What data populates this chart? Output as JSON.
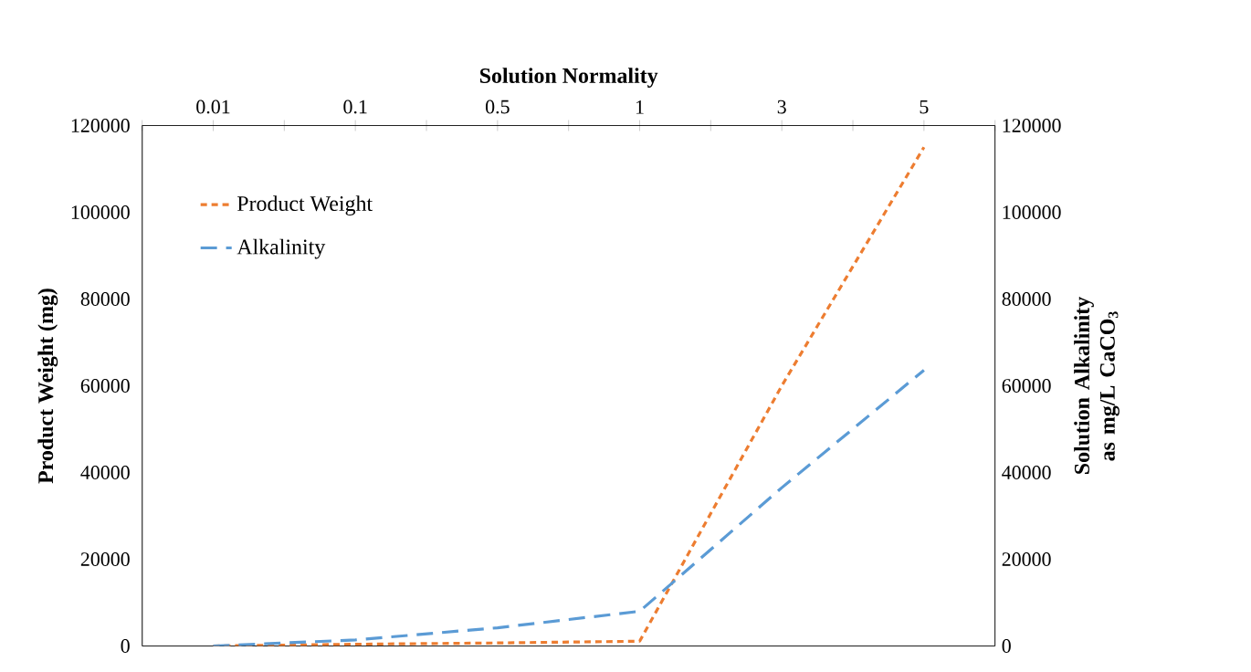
{
  "chart_data": {
    "type": "line",
    "xlabel": "Solution Normality",
    "ylabel": "Product Weight (mg)",
    "y2label": "Solution Alkalinity as mg/L CaCO$_{3}$",
    "categories": [
      "0.01",
      "0.1",
      "0.5",
      "1",
      "3",
      "5"
    ],
    "ylim": [
      0,
      120000
    ],
    "yticks": [
      0,
      20000,
      40000,
      60000,
      80000,
      100000,
      120000
    ],
    "y2lim": [
      0,
      120000
    ],
    "y2ticks": [
      0,
      20000,
      40000,
      60000,
      80000,
      100000,
      120000
    ],
    "legend": "top left",
    "grid": false,
    "marker": "none",
    "series": [
      {
        "name": "Product Weight",
        "color": "#ed7d31",
        "line_style": "dashed",
        "values": [
          0,
          400,
          700,
          1100,
          60000,
          115000
        ]
      },
      {
        "name": "Alkalinity",
        "color": "#5b9bd5",
        "line_style": "dashed",
        "axis": "y2",
        "values": [
          0,
          1400,
          4200,
          8000,
          36500,
          63600
        ]
      }
    ]
  }
}
